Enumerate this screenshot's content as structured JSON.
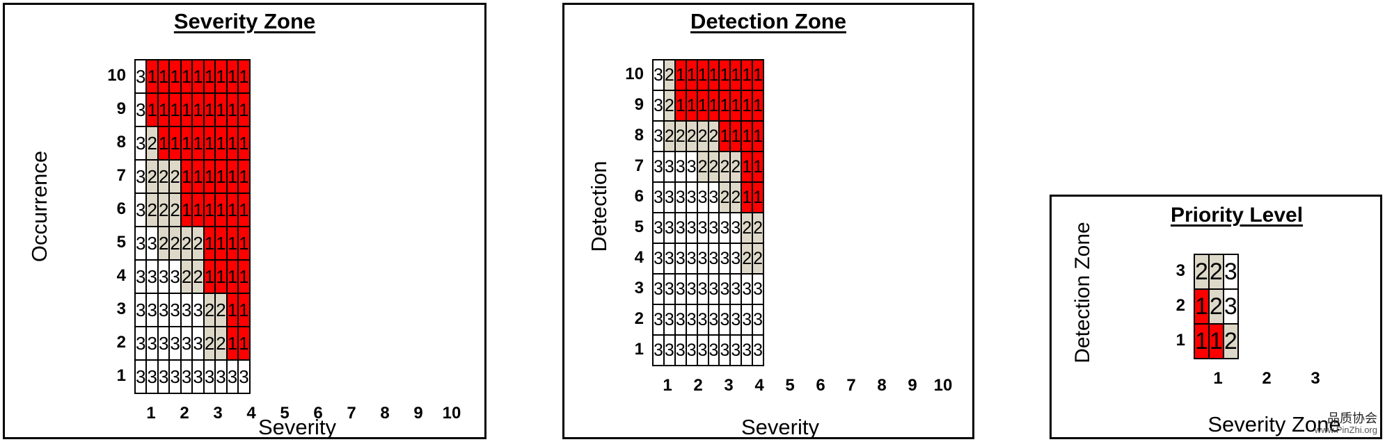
{
  "colors": {
    "1": "#ff0000",
    "2": "#ddd8c8",
    "3": "#ffffff"
  },
  "chart_data": [
    {
      "type": "heatmap",
      "title": "Severity Zone",
      "xlabel": "Severity",
      "ylabel": "Occurrence",
      "x": [
        "1",
        "2",
        "3",
        "4",
        "5",
        "6",
        "7",
        "8",
        "9",
        "10"
      ],
      "y": [
        "10",
        "9",
        "8",
        "7",
        "6",
        "5",
        "4",
        "3",
        "2",
        "1"
      ],
      "values": [
        [
          3,
          1,
          1,
          1,
          1,
          1,
          1,
          1,
          1,
          1
        ],
        [
          3,
          1,
          1,
          1,
          1,
          1,
          1,
          1,
          1,
          1
        ],
        [
          3,
          2,
          1,
          1,
          1,
          1,
          1,
          1,
          1,
          1
        ],
        [
          3,
          2,
          2,
          2,
          1,
          1,
          1,
          1,
          1,
          1
        ],
        [
          3,
          2,
          2,
          2,
          1,
          1,
          1,
          1,
          1,
          1
        ],
        [
          3,
          3,
          2,
          2,
          2,
          2,
          1,
          1,
          1,
          1
        ],
        [
          3,
          3,
          3,
          3,
          2,
          2,
          1,
          1,
          1,
          1
        ],
        [
          3,
          3,
          3,
          3,
          3,
          3,
          2,
          2,
          1,
          1
        ],
        [
          3,
          3,
          3,
          3,
          3,
          3,
          2,
          2,
          1,
          1
        ],
        [
          3,
          3,
          3,
          3,
          3,
          3,
          3,
          3,
          3,
          3
        ]
      ]
    },
    {
      "type": "heatmap",
      "title": "Detection Zone",
      "xlabel": "Severity",
      "ylabel": "Detection",
      "x": [
        "1",
        "2",
        "3",
        "4",
        "5",
        "6",
        "7",
        "8",
        "9",
        "10"
      ],
      "y": [
        "10",
        "9",
        "8",
        "7",
        "6",
        "5",
        "4",
        "3",
        "2",
        "1"
      ],
      "values": [
        [
          3,
          2,
          1,
          1,
          1,
          1,
          1,
          1,
          1,
          1
        ],
        [
          3,
          2,
          1,
          1,
          1,
          1,
          1,
          1,
          1,
          1
        ],
        [
          3,
          2,
          2,
          2,
          2,
          2,
          1,
          1,
          1,
          1
        ],
        [
          3,
          3,
          3,
          3,
          2,
          2,
          2,
          2,
          1,
          1
        ],
        [
          3,
          3,
          3,
          3,
          3,
          3,
          2,
          2,
          1,
          1
        ],
        [
          3,
          3,
          3,
          3,
          3,
          3,
          3,
          3,
          2,
          2
        ],
        [
          3,
          3,
          3,
          3,
          3,
          3,
          3,
          3,
          2,
          2
        ],
        [
          3,
          3,
          3,
          3,
          3,
          3,
          3,
          3,
          3,
          3
        ],
        [
          3,
          3,
          3,
          3,
          3,
          3,
          3,
          3,
          3,
          3
        ],
        [
          3,
          3,
          3,
          3,
          3,
          3,
          3,
          3,
          3,
          3
        ]
      ]
    },
    {
      "type": "heatmap",
      "title": "Priority Level",
      "xlabel": "Severity Zone",
      "ylabel": "Detection Zone",
      "x": [
        "1",
        "2",
        "3"
      ],
      "y": [
        "3",
        "2",
        "1"
      ],
      "values": [
        [
          2,
          2,
          3
        ],
        [
          1,
          2,
          3
        ],
        [
          1,
          1,
          2
        ]
      ]
    }
  ],
  "watermark": {
    "line1": "品质协会",
    "line2": "www.PinZhi.org"
  }
}
